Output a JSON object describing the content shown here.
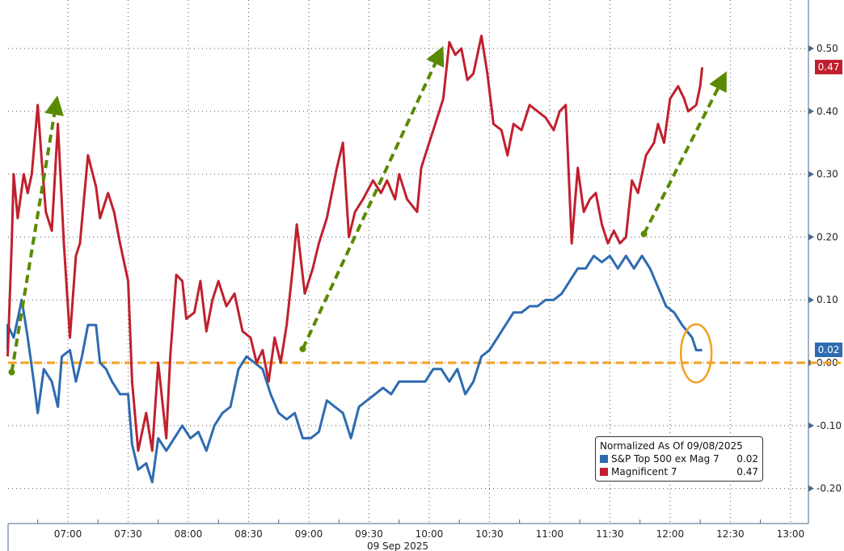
{
  "chart_data": {
    "type": "line",
    "title": "",
    "xlabel": "09 Sep 2025",
    "ylabel": "",
    "x_unit": "minutes since 06:30",
    "xlim": [
      0,
      400
    ],
    "ylim": [
      -0.26,
      0.56
    ],
    "grid": true,
    "x_ticks": [
      {
        "m": 30,
        "label": "07:00"
      },
      {
        "m": 60,
        "label": "07:30"
      },
      {
        "m": 90,
        "label": "08:00"
      },
      {
        "m": 120,
        "label": "08:30"
      },
      {
        "m": 150,
        "label": "09:00"
      },
      {
        "m": 180,
        "label": "09:30"
      },
      {
        "m": 210,
        "label": "10:00"
      },
      {
        "m": 240,
        "label": "10:30"
      },
      {
        "m": 270,
        "label": "11:00"
      },
      {
        "m": 300,
        "label": "11:30"
      },
      {
        "m": 330,
        "label": "12:00"
      },
      {
        "m": 360,
        "label": "12:30"
      },
      {
        "m": 390,
        "label": "13:00"
      }
    ],
    "y_ticks": [
      {
        "v": 0.5,
        "label": "0.50"
      },
      {
        "v": 0.4,
        "label": "0.40"
      },
      {
        "v": 0.3,
        "label": "0.30"
      },
      {
        "v": 0.2,
        "label": "0.20"
      },
      {
        "v": 0.1,
        "label": "0.10"
      },
      {
        "v": 0.0,
        "label": "0.00"
      },
      {
        "v": -0.1,
        "label": "-0.10"
      },
      {
        "v": -0.2,
        "label": "-0.20"
      }
    ],
    "legend": {
      "title": "Normalized As Of 09/08/2025",
      "placement": "bottom-right"
    },
    "series": [
      {
        "name": "S&P Top 500 ex Mag 7",
        "last": "0.02",
        "color": "#2e6bb0",
        "x": [
          0,
          0,
          3,
          7,
          10,
          13,
          15,
          18,
          22,
          25,
          27,
          31,
          34,
          37,
          40,
          44,
          46,
          49,
          52,
          56,
          60,
          62,
          65,
          69,
          72,
          75,
          79,
          83,
          87,
          91,
          95,
          99,
          103,
          107,
          111,
          115,
          119,
          123,
          127,
          131,
          135,
          139,
          143,
          147,
          151,
          155,
          159,
          163,
          167,
          171,
          175,
          179,
          183,
          187,
          191,
          195,
          199,
          204,
          208,
          212,
          216,
          220,
          224,
          228,
          232,
          236,
          240,
          244,
          248,
          252,
          256,
          260,
          264,
          268,
          272,
          276,
          280,
          284,
          288,
          292,
          296,
          300,
          304,
          308,
          312,
          316,
          320,
          324,
          328,
          332,
          336,
          341,
          343,
          346
        ],
        "y": [
          0.02,
          0.06,
          0.04,
          0.1,
          0.04,
          -0.03,
          -0.08,
          -0.01,
          -0.03,
          -0.07,
          0.01,
          0.02,
          -0.03,
          0.01,
          0.06,
          0.06,
          0.0,
          -0.01,
          -0.03,
          -0.05,
          -0.05,
          -0.13,
          -0.17,
          -0.16,
          -0.19,
          -0.12,
          -0.14,
          -0.12,
          -0.1,
          -0.12,
          -0.11,
          -0.14,
          -0.1,
          -0.08,
          -0.07,
          -0.01,
          0.01,
          0.0,
          -0.01,
          -0.05,
          -0.08,
          -0.09,
          -0.08,
          -0.12,
          -0.12,
          -0.11,
          -0.06,
          -0.07,
          -0.08,
          -0.12,
          -0.07,
          -0.06,
          -0.05,
          -0.04,
          -0.05,
          -0.03,
          -0.03,
          -0.03,
          -0.03,
          -0.01,
          -0.01,
          -0.03,
          -0.01,
          -0.05,
          -0.03,
          0.01,
          0.02,
          0.04,
          0.06,
          0.08,
          0.08,
          0.09,
          0.09,
          0.1,
          0.1,
          0.11,
          0.13,
          0.15,
          0.15,
          0.17,
          0.16,
          0.17,
          0.15,
          0.17,
          0.15,
          0.17,
          0.15,
          0.12,
          0.09,
          0.08,
          0.06,
          0.04,
          0.02,
          0.02
        ]
      },
      {
        "name": "Magnificent 7",
        "last": "0.47",
        "color": "#c0202e",
        "x": [
          0,
          2,
          3,
          5,
          8,
          10,
          12,
          15,
          17,
          19,
          22,
          25,
          28,
          31,
          34,
          36,
          40,
          44,
          46,
          50,
          53,
          56,
          60,
          62,
          65,
          69,
          72,
          75,
          79,
          81,
          84,
          87,
          89,
          93,
          96,
          99,
          102,
          105,
          109,
          113,
          117,
          121,
          124,
          127,
          130,
          133,
          136,
          139,
          142,
          144,
          148,
          152,
          155,
          159,
          164,
          167,
          170,
          173,
          177,
          182,
          186,
          189,
          193,
          195,
          199,
          204,
          206,
          210,
          213,
          217,
          220,
          223,
          226,
          229,
          232,
          236,
          239,
          242,
          246,
          249,
          252,
          256,
          260,
          264,
          268,
          272,
          275,
          278,
          281,
          284,
          287,
          290,
          293,
          296,
          299,
          302,
          305,
          308,
          311,
          314,
          318,
          322,
          324,
          327,
          330,
          334,
          337,
          339,
          343,
          345,
          346
        ],
        "y": [
          0.01,
          0.19,
          0.3,
          0.23,
          0.3,
          0.27,
          0.3,
          0.41,
          0.32,
          0.24,
          0.21,
          0.38,
          0.19,
          0.04,
          0.17,
          0.19,
          0.33,
          0.28,
          0.23,
          0.27,
          0.24,
          0.19,
          0.13,
          -0.03,
          -0.14,
          -0.08,
          -0.14,
          0.0,
          -0.12,
          0.01,
          0.14,
          0.13,
          0.07,
          0.08,
          0.13,
          0.05,
          0.1,
          0.13,
          0.09,
          0.11,
          0.05,
          0.04,
          0.0,
          0.02,
          -0.03,
          0.04,
          0.0,
          0.06,
          0.15,
          0.22,
          0.11,
          0.15,
          0.19,
          0.23,
          0.31,
          0.35,
          0.2,
          0.24,
          0.26,
          0.29,
          0.27,
          0.29,
          0.26,
          0.3,
          0.26,
          0.24,
          0.31,
          0.35,
          0.38,
          0.42,
          0.51,
          0.49,
          0.5,
          0.45,
          0.46,
          0.52,
          0.46,
          0.38,
          0.37,
          0.33,
          0.38,
          0.37,
          0.41,
          0.4,
          0.39,
          0.37,
          0.4,
          0.41,
          0.19,
          0.31,
          0.24,
          0.26,
          0.27,
          0.22,
          0.19,
          0.21,
          0.19,
          0.2,
          0.29,
          0.27,
          0.33,
          0.35,
          0.38,
          0.35,
          0.42,
          0.44,
          0.42,
          0.4,
          0.41,
          0.44,
          0.47
        ]
      }
    ],
    "annotations": {
      "arrows": [
        {
          "from": [
            2,
            -0.015
          ],
          "to": [
            24,
            0.41
          ]
        },
        {
          "from": [
            147,
            0.022
          ],
          "to": [
            215,
            0.49
          ]
        },
        {
          "from": [
            317,
            0.205
          ],
          "to": [
            356,
            0.45
          ]
        }
      ],
      "arrow_color": "#5a8a00",
      "zero_line_color": "#f4a020",
      "ellipse": {
        "center": [
          343,
          0.015
        ]
      }
    }
  }
}
